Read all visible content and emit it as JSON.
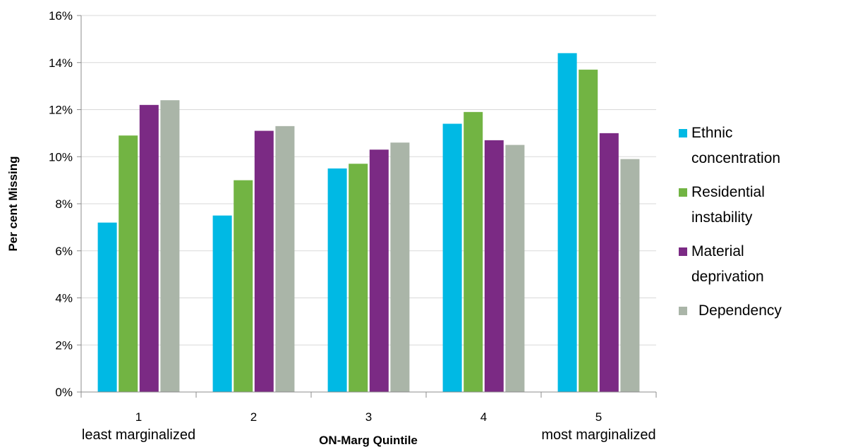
{
  "chart_data": {
    "type": "bar",
    "title": "",
    "xlabel": "ON-Marg Quintile",
    "ylabel": "Per cent Missing",
    "categories": [
      "1",
      "2",
      "3",
      "4",
      "5"
    ],
    "category_sublabels": [
      "least marginalized",
      "",
      "",
      "",
      "most marginalized"
    ],
    "ylim": [
      0,
      16
    ],
    "yticks": [
      "0%",
      "2%",
      "4%",
      "6%",
      "8%",
      "10%",
      "12%",
      "14%",
      "16%"
    ],
    "grid": true,
    "legend_position": "right",
    "series": [
      {
        "name": "Ethnic concentration",
        "legend_lines": [
          "Ethnic",
          "concentration"
        ],
        "color": "#00B9E4",
        "values": [
          7.2,
          7.5,
          9.5,
          11.4,
          14.4
        ]
      },
      {
        "name": "Residential instability",
        "legend_lines": [
          "Residential",
          "instability"
        ],
        "color": "#72B443",
        "values": [
          10.9,
          9.0,
          9.7,
          11.9,
          13.7
        ]
      },
      {
        "name": "Material deprivation",
        "legend_lines": [
          "Material",
          "deprivation"
        ],
        "color": "#7B2A84",
        "values": [
          12.2,
          11.1,
          10.3,
          10.7,
          11.0
        ]
      },
      {
        "name": "Dependency",
        "legend_lines": [
          "Dependency"
        ],
        "color": "#AAB5A8",
        "values": [
          12.4,
          11.3,
          10.6,
          10.5,
          9.9
        ]
      }
    ]
  }
}
